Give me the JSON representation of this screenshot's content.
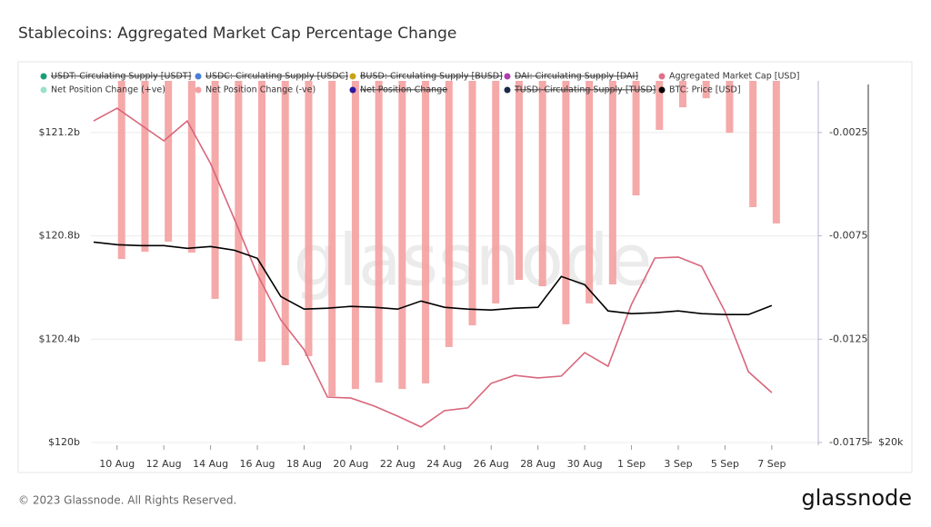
{
  "chart_data": {
    "type": "combo",
    "title": "Stablecoins: Aggregated Market Cap Percentage Change",
    "categories": [
      null,
      "10 Aug",
      null,
      "12 Aug",
      null,
      "14 Aug",
      null,
      "16 Aug",
      null,
      "18 Aug",
      null,
      "20 Aug",
      null,
      "22 Aug",
      null,
      "24 Aug",
      null,
      "26 Aug",
      null,
      "28 Aug",
      null,
      "30 Aug",
      null,
      "1 Sep",
      null,
      "3 Sep",
      null,
      "5 Sep",
      null,
      "7 Sep"
    ],
    "legend": [
      {
        "name": "USDT: Circulating Supply [USDT]",
        "color": "#1a9e77",
        "hidden": true
      },
      {
        "name": "USDC: Circulating Supply [USDC]",
        "color": "#4a7fd8",
        "hidden": true
      },
      {
        "name": "BUSD: Circulating Supply [BUSD]",
        "color": "#c9a21a",
        "hidden": true
      },
      {
        "name": "DAI: Circulating Supply [DAI]",
        "color": "#b03cb0",
        "hidden": true
      },
      {
        "name": "Aggregated Market Cap [USD]",
        "color": "#e0708a",
        "hidden": false
      },
      {
        "name": "Net Position Change (+ve)",
        "color": "#9be0c8",
        "hidden": false
      },
      {
        "name": "Net Position Change (-ve)",
        "color": "#f4a0a0",
        "hidden": false
      },
      {
        "name": "Net Position Change",
        "color": "#2b1a9e",
        "hidden": true
      },
      {
        "name": "TUSD: Circulating Supply [TUSD]",
        "color": "#1a2a4a",
        "hidden": true
      },
      {
        "name": "BTC: Price [USD]",
        "color": "#000000",
        "hidden": false
      }
    ],
    "series": [
      {
        "name": "Net Position Change (-ve)",
        "kind": "bar",
        "axis": "y2",
        "color": "#f4a0a0",
        "values": [
          null,
          -0.00862,
          -0.00827,
          -0.00778,
          -0.00831,
          -0.01055,
          -0.01258,
          -0.01359,
          -0.01376,
          -0.01332,
          -0.01526,
          -0.01491,
          -0.0146,
          -0.01491,
          -0.01464,
          -0.01288,
          -0.01183,
          -0.01077,
          -0.00963,
          -0.00994,
          -0.01178,
          -0.01077,
          -0.00985,
          -0.00554,
          -0.00237,
          -0.00128,
          -0.00084,
          -0.00251,
          -0.00611,
          -0.0069
        ]
      },
      {
        "name": "Aggregated Market Cap [USD]",
        "kind": "line",
        "axis": "y",
        "color": "#d9667a",
        "values": [
          121.245,
          121.294,
          121.231,
          121.168,
          121.245,
          121.08,
          120.869,
          120.651,
          120.475,
          120.359,
          120.176,
          120.172,
          120.141,
          120.102,
          120.06,
          120.123,
          120.134,
          120.229,
          120.26,
          120.25,
          120.257,
          120.348,
          120.295,
          120.535,
          120.714,
          120.718,
          120.682,
          120.507,
          120.274,
          120.193
        ]
      },
      {
        "name": "BTC: Price [USD]",
        "kind": "line",
        "axis": "y3",
        "color": "#000000",
        "values": [
          29591,
          29461,
          29418,
          29418,
          29288,
          29374,
          29201,
          28810,
          26987,
          26380,
          26423,
          26510,
          26467,
          26380,
          26770,
          26467,
          26380,
          26336,
          26423,
          26467,
          27942,
          27552,
          26293,
          26163,
          26206,
          26293,
          26163,
          26119,
          26119,
          26553
        ]
      }
    ],
    "ylim": [
      120,
      121.4
    ],
    "yticks": [
      {
        "value": 120,
        "label": "$120b"
      },
      {
        "value": 120.4,
        "label": "$120.4b"
      },
      {
        "value": 120.8,
        "label": "$120.8b"
      },
      {
        "value": 121.2,
        "label": "$121.2b"
      }
    ],
    "y2lim": [
      -0.0175,
      0
    ],
    "y2ticks": [
      -0.0175,
      -0.0125,
      -0.0075,
      -0.0025
    ],
    "y3lim": [
      20000,
      37300
    ],
    "y3ticks": [
      {
        "value": 20000,
        "label": "$20k"
      }
    ],
    "grid": true,
    "watermark": "glassnode"
  },
  "footer": "© 2023 Glassnode. All Rights Reserved.",
  "logo": "glassnode"
}
